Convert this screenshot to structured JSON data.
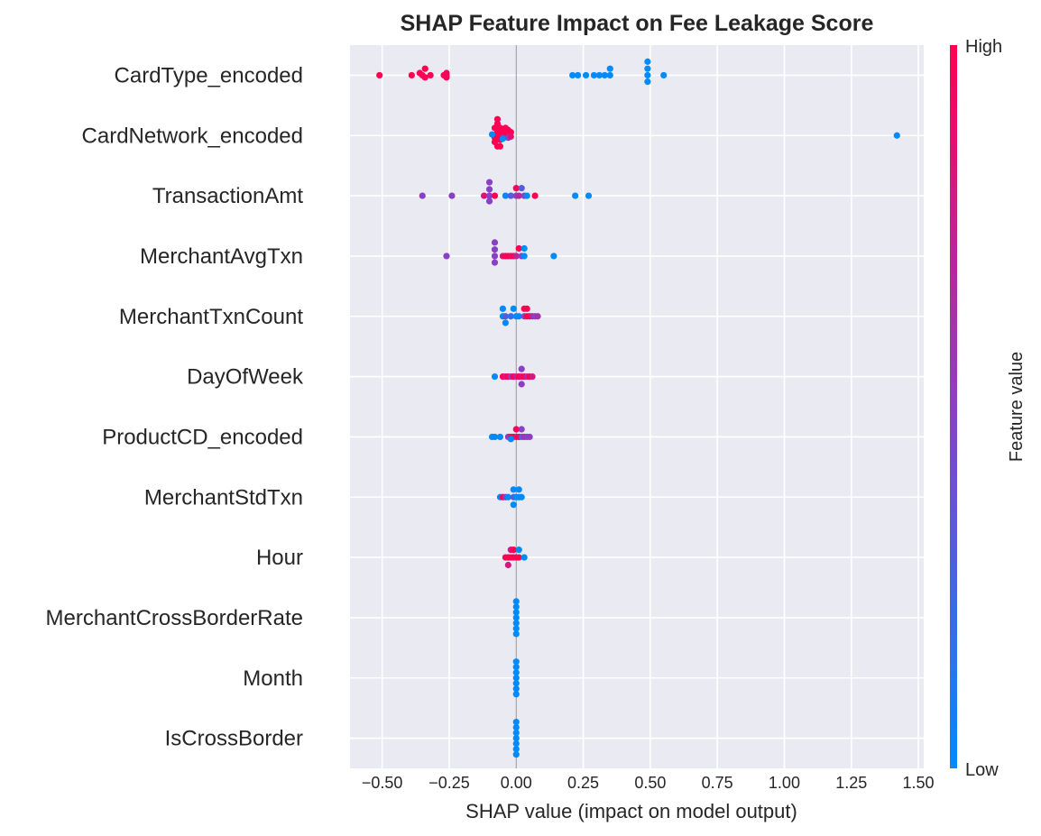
{
  "chart_data": {
    "type": "scatter",
    "subtype": "shap-beeswarm",
    "title": "SHAP Feature Impact on Fee Leakage Score",
    "xlabel": "SHAP value (impact on model output)",
    "xlim": [
      -0.62,
      1.52
    ],
    "xticks": [
      -0.5,
      -0.25,
      0.0,
      0.25,
      0.5,
      0.75,
      1.0,
      1.25,
      1.5
    ],
    "xtick_labels": [
      "−0.50",
      "−0.25",
      "0.00",
      "0.25",
      "0.50",
      "0.75",
      "1.00",
      "1.25",
      "1.50"
    ],
    "grid": true,
    "colorbar": {
      "label": "Feature value",
      "high_label": "High",
      "low_label": "Low",
      "low_color": "#008afb",
      "mid_color": "#8a40c6",
      "high_color": "#ff0052"
    },
    "colors": {
      "background": "#eaeaf2",
      "grid": "#ffffff",
      "zero_line": "#999999"
    },
    "features": [
      {
        "name": "CardType_encoded",
        "points": [
          {
            "x": -0.51,
            "y": 0.0,
            "v": 1
          },
          {
            "x": -0.39,
            "y": 0.0,
            "v": 1
          },
          {
            "x": -0.36,
            "y": 0.04,
            "v": 1
          },
          {
            "x": -0.35,
            "y": 0.0,
            "v": 1
          },
          {
            "x": -0.34,
            "y": -0.04,
            "v": 1
          },
          {
            "x": -0.34,
            "y": 0.12,
            "v": 1
          },
          {
            "x": -0.32,
            "y": 0.0,
            "v": 1
          },
          {
            "x": -0.27,
            "y": 0.0,
            "v": 1
          },
          {
            "x": -0.26,
            "y": -0.04,
            "v": 1
          },
          {
            "x": -0.26,
            "y": 0.04,
            "v": 1
          },
          {
            "x": -0.26,
            "y": 0.0,
            "v": 0.95
          },
          {
            "x": 0.21,
            "y": 0.0,
            "v": 0
          },
          {
            "x": 0.23,
            "y": 0.0,
            "v": 0
          },
          {
            "x": 0.26,
            "y": 0.0,
            "v": 0
          },
          {
            "x": 0.29,
            "y": 0.0,
            "v": 0
          },
          {
            "x": 0.31,
            "y": 0.0,
            "v": 0
          },
          {
            "x": 0.33,
            "y": 0.0,
            "v": 0
          },
          {
            "x": 0.35,
            "y": 0.12,
            "v": 0
          },
          {
            "x": 0.35,
            "y": 0.0,
            "v": 0
          },
          {
            "x": 0.49,
            "y": 0.25,
            "v": 0
          },
          {
            "x": 0.49,
            "y": 0.12,
            "v": 0
          },
          {
            "x": 0.49,
            "y": 0.0,
            "v": 0
          },
          {
            "x": 0.49,
            "y": -0.12,
            "v": 0
          },
          {
            "x": 0.55,
            "y": 0.0,
            "v": 0
          }
        ]
      },
      {
        "name": "CardNetwork_encoded",
        "points": [
          {
            "x": -0.07,
            "y": 0.3,
            "v": 1
          },
          {
            "x": -0.07,
            "y": 0.22,
            "v": 1
          },
          {
            "x": -0.08,
            "y": 0.14,
            "v": 1
          },
          {
            "x": -0.06,
            "y": 0.14,
            "v": 1
          },
          {
            "x": -0.07,
            "y": 0.06,
            "v": 1
          },
          {
            "x": -0.05,
            "y": 0.06,
            "v": 1
          },
          {
            "x": -0.04,
            "y": 0.14,
            "v": 1
          },
          {
            "x": -0.03,
            "y": 0.1,
            "v": 1
          },
          {
            "x": -0.02,
            "y": 0.06,
            "v": 1
          },
          {
            "x": -0.04,
            "y": 0.0,
            "v": 1
          },
          {
            "x": -0.06,
            "y": 0.0,
            "v": 1
          },
          {
            "x": -0.08,
            "y": -0.04,
            "v": 1
          },
          {
            "x": -0.06,
            "y": -0.08,
            "v": 1
          },
          {
            "x": -0.08,
            "y": -0.12,
            "v": 1
          },
          {
            "x": -0.07,
            "y": -0.2,
            "v": 1
          },
          {
            "x": -0.06,
            "y": -0.2,
            "v": 1
          },
          {
            "x": -0.05,
            "y": -0.04,
            "v": 0.7
          },
          {
            "x": -0.03,
            "y": -0.04,
            "v": 0.5
          },
          {
            "x": -0.09,
            "y": 0.02,
            "v": 0
          },
          {
            "x": -0.05,
            "y": -0.06,
            "v": 0
          },
          {
            "x": -0.02,
            "y": -0.02,
            "v": 0.85
          },
          {
            "x": 1.42,
            "y": 0.0,
            "v": 0
          }
        ]
      },
      {
        "name": "TransactionAmt",
        "points": [
          {
            "x": -0.35,
            "y": 0.0,
            "v": 0.5
          },
          {
            "x": -0.24,
            "y": 0.0,
            "v": 0.5
          },
          {
            "x": -0.12,
            "y": 0.0,
            "v": 0.85
          },
          {
            "x": -0.1,
            "y": 0.0,
            "v": 0.5
          },
          {
            "x": -0.1,
            "y": 0.12,
            "v": 0.5
          },
          {
            "x": -0.1,
            "y": 0.25,
            "v": 0.5
          },
          {
            "x": -0.1,
            "y": -0.1,
            "v": 0.5
          },
          {
            "x": -0.08,
            "y": 0.0,
            "v": 1
          },
          {
            "x": -0.04,
            "y": 0.0,
            "v": 0
          },
          {
            "x": -0.02,
            "y": 0.0,
            "v": 0.3
          },
          {
            "x": 0.0,
            "y": 0.0,
            "v": 0.5
          },
          {
            "x": 0.0,
            "y": 0.14,
            "v": 1
          },
          {
            "x": 0.01,
            "y": 0.0,
            "v": 0.7
          },
          {
            "x": 0.02,
            "y": 0.14,
            "v": 0.3
          },
          {
            "x": 0.03,
            "y": 0.0,
            "v": 0.5
          },
          {
            "x": 0.04,
            "y": 0.0,
            "v": 0
          },
          {
            "x": 0.07,
            "y": 0.0,
            "v": 1
          },
          {
            "x": 0.22,
            "y": 0.0,
            "v": 0
          },
          {
            "x": 0.27,
            "y": 0.0,
            "v": 0
          }
        ]
      },
      {
        "name": "MerchantAvgTxn",
        "points": [
          {
            "x": -0.26,
            "y": 0.0,
            "v": 0.5
          },
          {
            "x": -0.08,
            "y": 0.25,
            "v": 0.5
          },
          {
            "x": -0.08,
            "y": 0.12,
            "v": 0.5
          },
          {
            "x": -0.08,
            "y": 0.0,
            "v": 0.5
          },
          {
            "x": -0.08,
            "y": -0.12,
            "v": 0.5
          },
          {
            "x": -0.05,
            "y": 0.0,
            "v": 0.85
          },
          {
            "x": -0.04,
            "y": 0.0,
            "v": 1
          },
          {
            "x": -0.03,
            "y": 0.0,
            "v": 1
          },
          {
            "x": -0.02,
            "y": 0.0,
            "v": 0.9
          },
          {
            "x": -0.01,
            "y": 0.0,
            "v": 1
          },
          {
            "x": 0.0,
            "y": 0.0,
            "v": 0.7
          },
          {
            "x": 0.01,
            "y": 0.14,
            "v": 1
          },
          {
            "x": 0.02,
            "y": 0.0,
            "v": 0.5
          },
          {
            "x": 0.03,
            "y": 0.14,
            "v": 0
          },
          {
            "x": 0.03,
            "y": 0.0,
            "v": 0
          },
          {
            "x": 0.14,
            "y": 0.0,
            "v": 0
          }
        ]
      },
      {
        "name": "MerchantTxnCount",
        "points": [
          {
            "x": -0.05,
            "y": 0.14,
            "v": 0
          },
          {
            "x": -0.01,
            "y": 0.14,
            "v": 0
          },
          {
            "x": 0.04,
            "y": 0.14,
            "v": 1
          },
          {
            "x": 0.03,
            "y": 0.14,
            "v": 1
          },
          {
            "x": -0.05,
            "y": 0.0,
            "v": 0
          },
          {
            "x": -0.04,
            "y": 0.0,
            "v": 0.3
          },
          {
            "x": -0.02,
            "y": 0.0,
            "v": 0.2
          },
          {
            "x": 0.0,
            "y": 0.0,
            "v": 0
          },
          {
            "x": 0.01,
            "y": 0.0,
            "v": 0
          },
          {
            "x": 0.03,
            "y": 0.0,
            "v": 0.5
          },
          {
            "x": 0.04,
            "y": 0.0,
            "v": 1
          },
          {
            "x": 0.05,
            "y": 0.0,
            "v": 1
          },
          {
            "x": 0.06,
            "y": 0.0,
            "v": 0.7
          },
          {
            "x": 0.07,
            "y": 0.0,
            "v": 0.5
          },
          {
            "x": 0.08,
            "y": 0.0,
            "v": 0.6
          },
          {
            "x": -0.04,
            "y": -0.12,
            "v": 0
          }
        ]
      },
      {
        "name": "DayOfWeek",
        "points": [
          {
            "x": 0.02,
            "y": 0.14,
            "v": 0.5
          },
          {
            "x": -0.08,
            "y": 0.0,
            "v": 0
          },
          {
            "x": -0.05,
            "y": 0.0,
            "v": 1
          },
          {
            "x": -0.04,
            "y": 0.0,
            "v": 0.8
          },
          {
            "x": -0.03,
            "y": 0.0,
            "v": 1
          },
          {
            "x": -0.02,
            "y": 0.0,
            "v": 0.5
          },
          {
            "x": -0.01,
            "y": 0.0,
            "v": 1
          },
          {
            "x": 0.0,
            "y": 0.0,
            "v": 0.7
          },
          {
            "x": 0.01,
            "y": 0.0,
            "v": 1
          },
          {
            "x": 0.02,
            "y": 0.0,
            "v": 0.85
          },
          {
            "x": 0.03,
            "y": 0.0,
            "v": 1
          },
          {
            "x": 0.04,
            "y": 0.0,
            "v": 0.6
          },
          {
            "x": 0.05,
            "y": 0.0,
            "v": 1
          },
          {
            "x": 0.06,
            "y": 0.0,
            "v": 0.8
          },
          {
            "x": 0.02,
            "y": -0.14,
            "v": 0.5
          }
        ]
      },
      {
        "name": "ProductCD_encoded",
        "points": [
          {
            "x": 0.0,
            "y": 0.14,
            "v": 1
          },
          {
            "x": 0.02,
            "y": 0.14,
            "v": 0.5
          },
          {
            "x": -0.09,
            "y": 0.0,
            "v": 0
          },
          {
            "x": -0.08,
            "y": 0.0,
            "v": 0
          },
          {
            "x": -0.06,
            "y": 0.0,
            "v": 0
          },
          {
            "x": -0.03,
            "y": 0.0,
            "v": 0.5
          },
          {
            "x": -0.02,
            "y": 0.0,
            "v": 1
          },
          {
            "x": -0.01,
            "y": 0.0,
            "v": 1
          },
          {
            "x": 0.0,
            "y": 0.0,
            "v": 0.85
          },
          {
            "x": 0.01,
            "y": 0.0,
            "v": 1
          },
          {
            "x": 0.02,
            "y": 0.0,
            "v": 0.3
          },
          {
            "x": 0.03,
            "y": 0.0,
            "v": 0.6
          },
          {
            "x": 0.04,
            "y": 0.0,
            "v": 0.5
          },
          {
            "x": 0.05,
            "y": 0.0,
            "v": 0.5
          },
          {
            "x": -0.02,
            "y": -0.04,
            "v": 0
          }
        ]
      },
      {
        "name": "MerchantStdTxn",
        "points": [
          {
            "x": -0.01,
            "y": 0.14,
            "v": 0
          },
          {
            "x": 0.01,
            "y": 0.14,
            "v": 0
          },
          {
            "x": -0.06,
            "y": 0.0,
            "v": 0
          },
          {
            "x": -0.05,
            "y": 0.0,
            "v": 1
          },
          {
            "x": -0.04,
            "y": 0.0,
            "v": 0.5
          },
          {
            "x": -0.03,
            "y": 0.0,
            "v": 0
          },
          {
            "x": -0.01,
            "y": 0.0,
            "v": 0.3
          },
          {
            "x": 0.0,
            "y": 0.0,
            "v": 0
          },
          {
            "x": 0.01,
            "y": 0.0,
            "v": 0
          },
          {
            "x": 0.02,
            "y": 0.0,
            "v": 0
          },
          {
            "x": -0.01,
            "y": -0.14,
            "v": 0
          }
        ]
      },
      {
        "name": "Hour",
        "points": [
          {
            "x": -0.02,
            "y": 0.14,
            "v": 0.8
          },
          {
            "x": -0.01,
            "y": 0.14,
            "v": 1
          },
          {
            "x": 0.01,
            "y": 0.14,
            "v": 0
          },
          {
            "x": -0.04,
            "y": 0.0,
            "v": 1
          },
          {
            "x": -0.03,
            "y": 0.0,
            "v": 1
          },
          {
            "x": -0.02,
            "y": 0.0,
            "v": 1
          },
          {
            "x": -0.01,
            "y": 0.0,
            "v": 1
          },
          {
            "x": 0.0,
            "y": 0.0,
            "v": 1
          },
          {
            "x": 0.01,
            "y": 0.0,
            "v": 1
          },
          {
            "x": 0.03,
            "y": 0.0,
            "v": 0
          },
          {
            "x": -0.03,
            "y": -0.14,
            "v": 0.8
          }
        ]
      },
      {
        "name": "MerchantCrossBorderRate",
        "points": [
          {
            "x": 0.0,
            "y": 0.3,
            "v": 0
          },
          {
            "x": 0.0,
            "y": 0.2,
            "v": 0
          },
          {
            "x": 0.0,
            "y": 0.1,
            "v": 0
          },
          {
            "x": 0.0,
            "y": 0.0,
            "v": 0
          },
          {
            "x": 0.0,
            "y": -0.1,
            "v": 0
          },
          {
            "x": 0.0,
            "y": -0.2,
            "v": 0
          },
          {
            "x": 0.0,
            "y": -0.3,
            "v": 0
          }
        ]
      },
      {
        "name": "Month",
        "points": [
          {
            "x": 0.0,
            "y": 0.3,
            "v": 0
          },
          {
            "x": 0.0,
            "y": 0.2,
            "v": 0
          },
          {
            "x": 0.0,
            "y": 0.1,
            "v": 0
          },
          {
            "x": 0.0,
            "y": 0.0,
            "v": 0
          },
          {
            "x": 0.0,
            "y": -0.1,
            "v": 0
          },
          {
            "x": 0.0,
            "y": -0.2,
            "v": 0
          },
          {
            "x": 0.0,
            "y": -0.3,
            "v": 0
          }
        ]
      },
      {
        "name": "IsCrossBorder",
        "points": [
          {
            "x": 0.0,
            "y": 0.3,
            "v": 0
          },
          {
            "x": 0.0,
            "y": 0.2,
            "v": 0
          },
          {
            "x": 0.0,
            "y": 0.1,
            "v": 0
          },
          {
            "x": 0.0,
            "y": 0.0,
            "v": 0
          },
          {
            "x": 0.0,
            "y": -0.1,
            "v": 0
          },
          {
            "x": 0.0,
            "y": -0.2,
            "v": 0
          },
          {
            "x": 0.0,
            "y": -0.3,
            "v": 0
          }
        ]
      }
    ]
  }
}
